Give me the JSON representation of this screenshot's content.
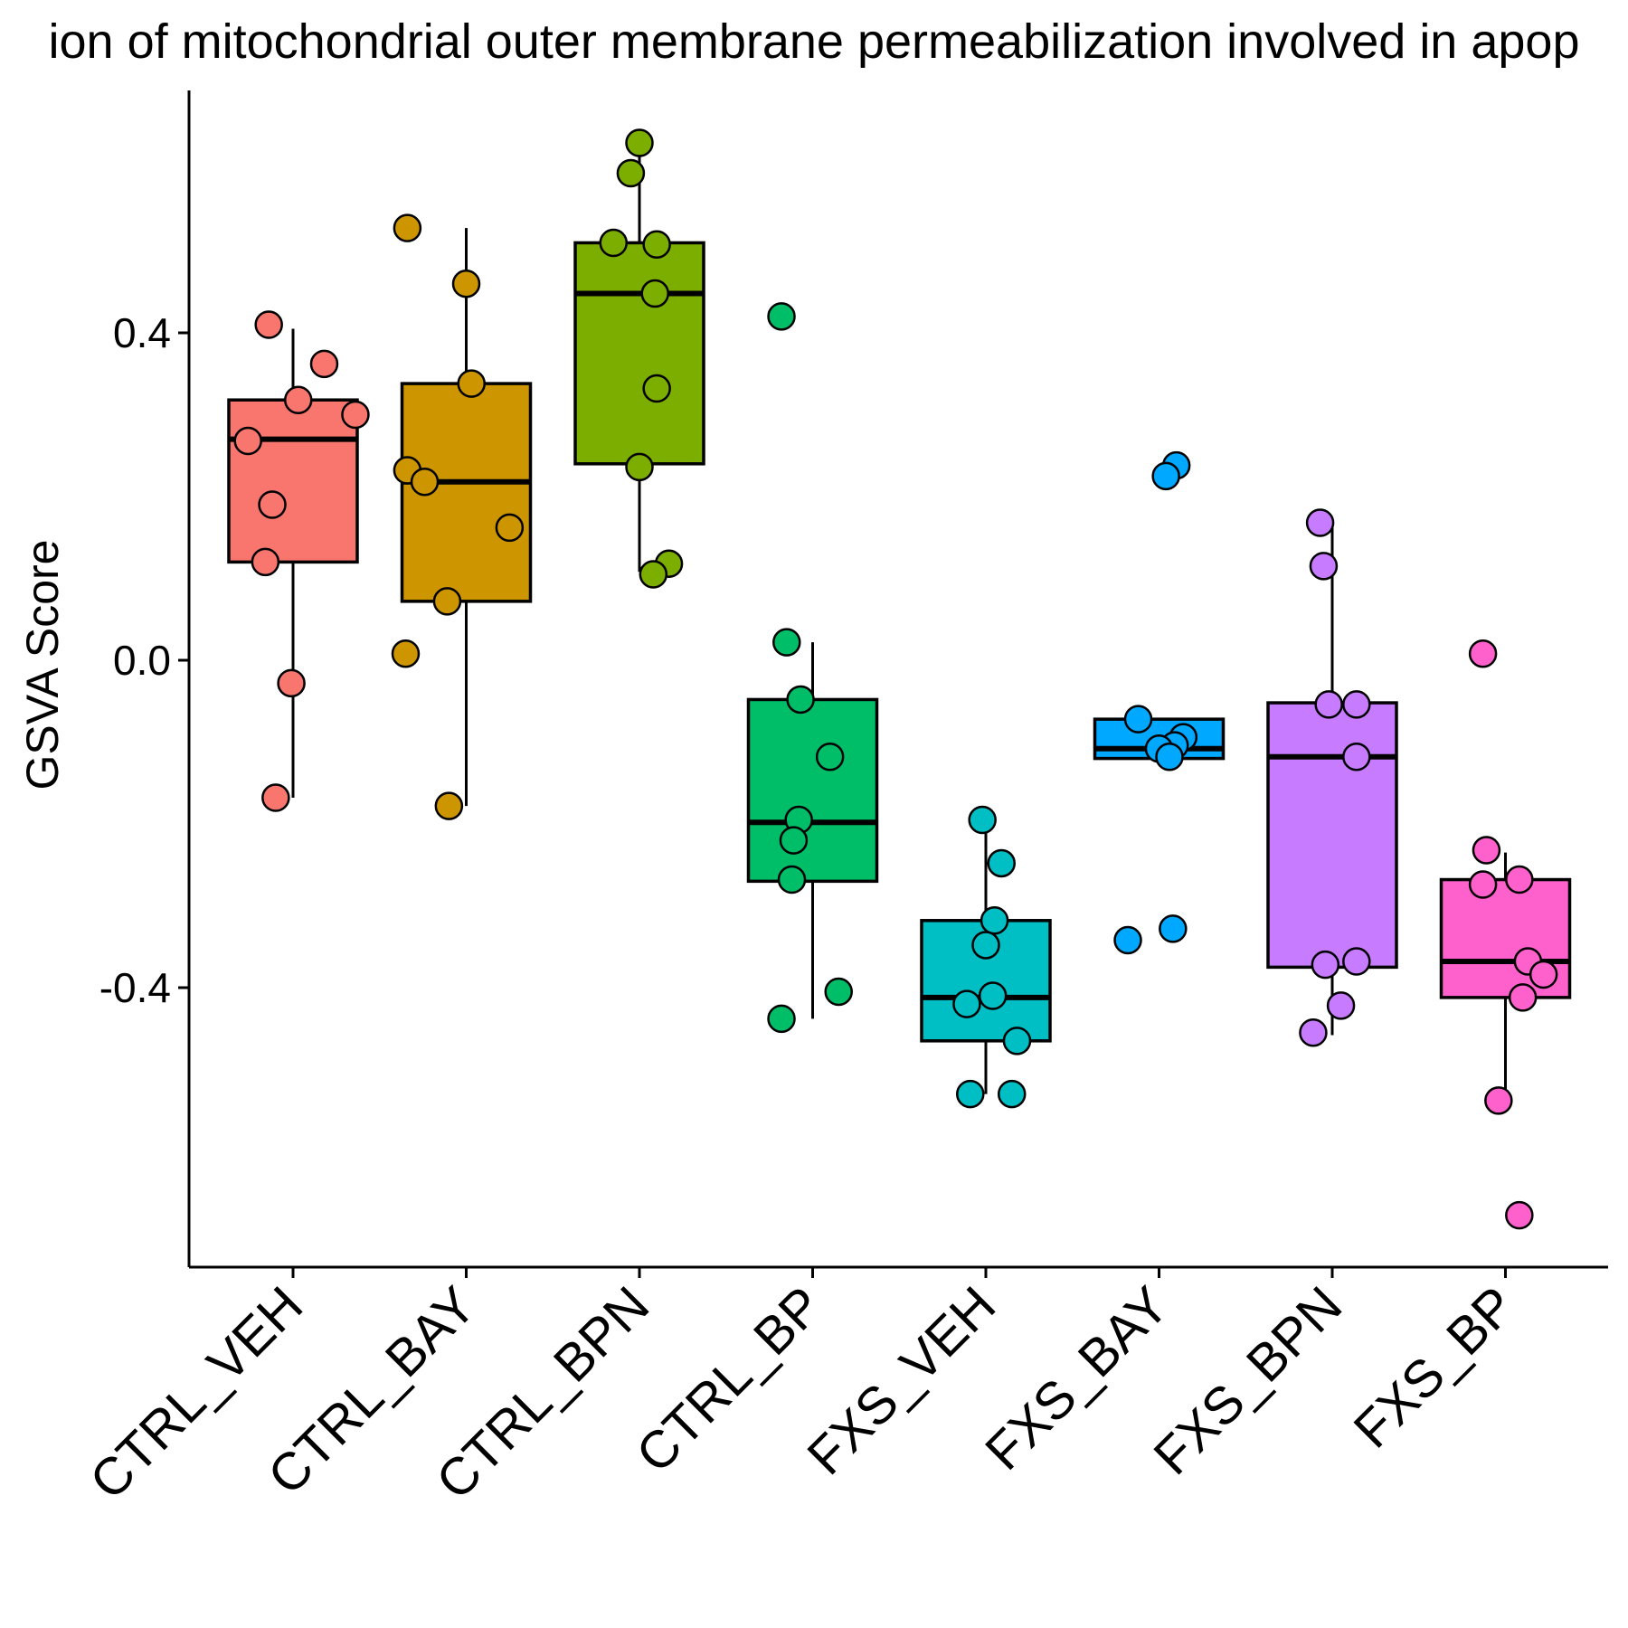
{
  "chart_data": {
    "type": "box",
    "title": "ion of mitochondrial outer membrane permeabilization involved in apop",
    "xlabel": "",
    "ylabel": "GSVA Score",
    "yticks": [
      -0.4,
      0.0,
      0.4
    ],
    "ytick_labels": [
      "-0.4",
      "0.0",
      "0.4"
    ],
    "ylim": [
      -0.745,
      0.7
    ],
    "grid": false,
    "legend": "none",
    "categories": [
      "CTRL_VEH",
      "CTRL_BAY",
      "CTRL_BPN",
      "CTRL_BP",
      "FXS_VEH",
      "FXS_BAY",
      "FXS_BPN",
      "FXS_BP"
    ],
    "groups": [
      {
        "name": "CTRL_VEH",
        "color": "#F8766D",
        "box": {
          "q1": 0.12,
          "median": 0.27,
          "q3": 0.318,
          "whisker_low": -0.168,
          "whisker_high": 0.405
        },
        "points": [
          {
            "x": -0.14,
            "y": 0.41
          },
          {
            "x": 0.18,
            "y": 0.362
          },
          {
            "x": 0.03,
            "y": 0.318
          },
          {
            "x": 0.36,
            "y": 0.3
          },
          {
            "x": -0.26,
            "y": 0.268
          },
          {
            "x": -0.12,
            "y": 0.19
          },
          {
            "x": -0.16,
            "y": 0.12
          },
          {
            "x": -0.01,
            "y": -0.028
          },
          {
            "x": -0.1,
            "y": -0.168
          }
        ]
      },
      {
        "name": "CTRL_BAY",
        "color": "#CD9600",
        "box": {
          "q1": 0.072,
          "median": 0.218,
          "q3": 0.338,
          "whisker_low": -0.178,
          "whisker_high": 0.528
        },
        "points": [
          {
            "x": -0.34,
            "y": 0.528
          },
          {
            "x": 0.0,
            "y": 0.46
          },
          {
            "x": 0.03,
            "y": 0.338
          },
          {
            "x": -0.34,
            "y": 0.232
          },
          {
            "x": -0.24,
            "y": 0.218
          },
          {
            "x": 0.25,
            "y": 0.162
          },
          {
            "x": -0.11,
            "y": 0.072
          },
          {
            "x": -0.35,
            "y": 0.008
          },
          {
            "x": -0.1,
            "y": -0.178
          }
        ]
      },
      {
        "name": "CTRL_BPN",
        "color": "#7CAE00",
        "box": {
          "q1": 0.24,
          "median": 0.448,
          "q3": 0.51,
          "whisker_low": 0.108,
          "whisker_high": 0.632
        },
        "points": [
          {
            "x": 0.0,
            "y": 0.632
          },
          {
            "x": -0.05,
            "y": 0.595
          },
          {
            "x": -0.15,
            "y": 0.51
          },
          {
            "x": 0.1,
            "y": 0.508
          },
          {
            "x": 0.09,
            "y": 0.448
          },
          {
            "x": 0.1,
            "y": 0.332
          },
          {
            "x": 0.0,
            "y": 0.236
          },
          {
            "x": 0.17,
            "y": 0.118
          },
          {
            "x": 0.08,
            "y": 0.105
          }
        ]
      },
      {
        "name": "CTRL_BP",
        "color": "#00BE67",
        "box": {
          "q1": -0.27,
          "median": -0.198,
          "q3": -0.048,
          "whisker_low": -0.438,
          "whisker_high": 0.022
        },
        "points": [
          {
            "x": -0.18,
            "y": 0.42
          },
          {
            "x": -0.15,
            "y": 0.022
          },
          {
            "x": -0.07,
            "y": -0.048
          },
          {
            "x": 0.1,
            "y": -0.118
          },
          {
            "x": -0.08,
            "y": -0.195
          },
          {
            "x": -0.11,
            "y": -0.22
          },
          {
            "x": -0.12,
            "y": -0.268
          },
          {
            "x": 0.15,
            "y": -0.405
          },
          {
            "x": -0.18,
            "y": -0.438
          }
        ]
      },
      {
        "name": "FXS_VEH",
        "color": "#00BFC4",
        "box": {
          "q1": -0.465,
          "median": -0.412,
          "q3": -0.318,
          "whisker_low": -0.53,
          "whisker_high": -0.195
        },
        "points": [
          {
            "x": -0.02,
            "y": -0.195
          },
          {
            "x": 0.09,
            "y": -0.248
          },
          {
            "x": 0.05,
            "y": -0.318
          },
          {
            "x": 0.0,
            "y": -0.348
          },
          {
            "x": 0.04,
            "y": -0.41
          },
          {
            "x": -0.11,
            "y": -0.42
          },
          {
            "x": 0.18,
            "y": -0.465
          },
          {
            "x": -0.09,
            "y": -0.53
          },
          {
            "x": 0.15,
            "y": -0.53
          }
        ]
      },
      {
        "name": "FXS_BAY",
        "color": "#00A9FF",
        "box": {
          "q1": -0.12,
          "median": -0.108,
          "q3": -0.072,
          "whisker_low": -0.12,
          "whisker_high": -0.072
        },
        "points": [
          {
            "x": 0.1,
            "y": 0.238
          },
          {
            "x": 0.04,
            "y": 0.225
          },
          {
            "x": -0.12,
            "y": -0.072
          },
          {
            "x": 0.14,
            "y": -0.094
          },
          {
            "x": 0.09,
            "y": -0.104
          },
          {
            "x": 0.0,
            "y": -0.108
          },
          {
            "x": 0.06,
            "y": -0.118
          },
          {
            "x": 0.08,
            "y": -0.328
          },
          {
            "x": -0.18,
            "y": -0.342
          }
        ]
      },
      {
        "name": "FXS_BPN",
        "color": "#C77CFF",
        "box": {
          "q1": -0.375,
          "median": -0.118,
          "q3": -0.052,
          "whisker_low": -0.458,
          "whisker_high": 0.168
        },
        "points": [
          {
            "x": -0.07,
            "y": 0.168
          },
          {
            "x": -0.05,
            "y": 0.115
          },
          {
            "x": -0.02,
            "y": -0.054
          },
          {
            "x": 0.14,
            "y": -0.054
          },
          {
            "x": 0.14,
            "y": -0.118
          },
          {
            "x": -0.04,
            "y": -0.372
          },
          {
            "x": 0.14,
            "y": -0.368
          },
          {
            "x": 0.05,
            "y": -0.422
          },
          {
            "x": -0.11,
            "y": -0.455
          }
        ]
      },
      {
        "name": "FXS_BP",
        "color": "#FF61CC",
        "box": {
          "q1": -0.412,
          "median": -0.368,
          "q3": -0.268,
          "whisker_low": -0.538,
          "whisker_high": -0.235
        },
        "points": [
          {
            "x": -0.13,
            "y": 0.008
          },
          {
            "x": -0.11,
            "y": -0.232
          },
          {
            "x": 0.08,
            "y": -0.268
          },
          {
            "x": -0.13,
            "y": -0.274
          },
          {
            "x": 0.13,
            "y": -0.368
          },
          {
            "x": 0.22,
            "y": -0.384
          },
          {
            "x": 0.1,
            "y": -0.412
          },
          {
            "x": -0.04,
            "y": -0.538
          },
          {
            "x": 0.08,
            "y": -0.678
          }
        ]
      }
    ]
  }
}
